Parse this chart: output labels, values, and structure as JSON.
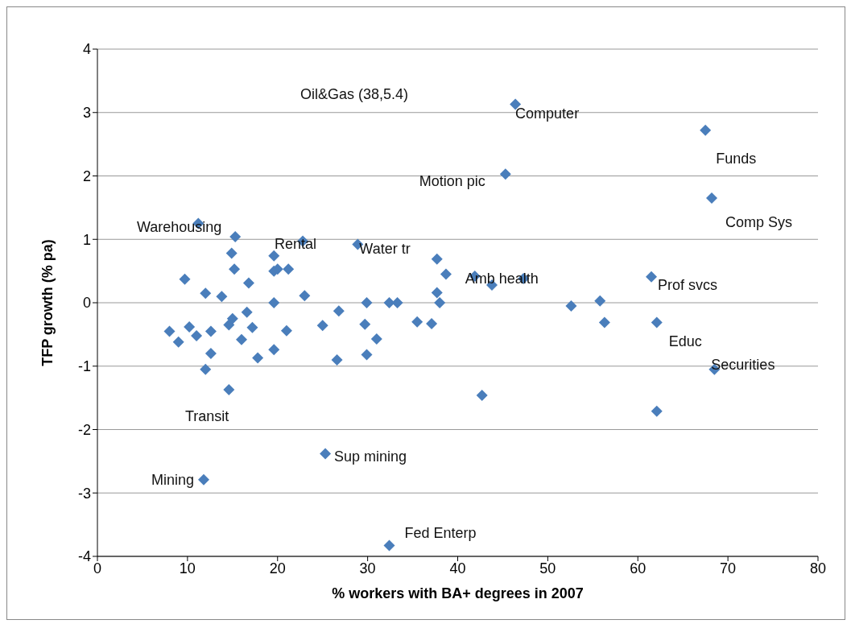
{
  "chart_data": {
    "type": "scatter",
    "xlabel": "% workers with BA+ degrees in 2007",
    "ylabel": "TFP growth (% pa)",
    "x": [
      8,
      9,
      9.7,
      10.2,
      11,
      11.2,
      12,
      12,
      12.6,
      12.6,
      13.8,
      14.6,
      14.6,
      14.9,
      15,
      15.2,
      15.3,
      16,
      16.6,
      16.8,
      17.2,
      17.8,
      19.6,
      19.6,
      19.6,
      19.6,
      20,
      21,
      21.2,
      22.8,
      23,
      25,
      25.3,
      26.6,
      26.8,
      28.9,
      29.7,
      29.9,
      29.9,
      31,
      32.4,
      33.3,
      35.5,
      37.1,
      37.7,
      37.7,
      38,
      38.7,
      41.9,
      42.7,
      43.8,
      45.3,
      46.4,
      47.3,
      52.6,
      55.8,
      56.3,
      61.5,
      62.1,
      62.1,
      67.5,
      68.2,
      68.5,
      11.8,
      32.4
    ],
    "series": [
      {
        "color": "#4a7ebb",
        "values": [
          -0.45,
          -0.62,
          0.37,
          -0.38,
          -0.52,
          1.25,
          0.15,
          -1.05,
          -0.45,
          -0.8,
          0.1,
          -1.37,
          -0.35,
          0.78,
          -0.25,
          0.53,
          1.04,
          -0.58,
          -0.15,
          0.31,
          -0.39,
          -0.87,
          0.74,
          0,
          -0.74,
          0.5,
          0.53,
          -0.44,
          0.53,
          0.97,
          0.11,
          -0.36,
          -2.38,
          -0.9,
          -0.13,
          0.92,
          -0.34,
          0,
          -0.82,
          -0.57,
          0,
          0,
          -0.3,
          -0.33,
          0.69,
          0.16,
          0,
          0.45,
          0.42,
          -1.46,
          0.28,
          2.03,
          3.13,
          0.38,
          -0.05,
          0.03,
          -0.31,
          0.41,
          -0.31,
          -1.71,
          2.72,
          1.65,
          -1.05,
          -2.79,
          -3.83
        ]
      }
    ],
    "xlim": [
      0,
      80
    ],
    "xticks": [
      0,
      10,
      20,
      30,
      40,
      50,
      60,
      70,
      80
    ],
    "ylim": [
      -4,
      4
    ],
    "yticks": [
      -4,
      -3,
      -2,
      -1,
      0,
      1,
      2,
      3,
      4
    ],
    "grid": "y",
    "marker": "diamond",
    "legend": false,
    "annotations": [
      "Oil&Gas (38,5.4)",
      {
        "text": "Computer",
        "x": 46.4,
        "y": 3.13
      },
      {
        "text": "Funds",
        "x": 67.5,
        "y": 2.72
      },
      {
        "text": "Motion pic",
        "x": 45.3,
        "y": 2.03
      },
      {
        "text": "Comp Sys",
        "x": 68.2,
        "y": 1.65
      },
      {
        "text": "Warehousing",
        "x": 11.2,
        "y": 1.25
      },
      {
        "text": "Rental",
        "x": 22.8,
        "y": 0.97
      },
      {
        "text": "Water tr",
        "x": 28.9,
        "y": 0.92
      },
      {
        "text": "Amb health",
        "x": 41.9,
        "y": 0.42
      },
      {
        "text": "Prof svcs",
        "x": 61.5,
        "y": 0.41
      },
      {
        "text": "Educ",
        "x": 62.1,
        "y": -0.31
      },
      {
        "text": "Securities",
        "x": 68.5,
        "y": -1.05
      },
      {
        "text": "Transit",
        "x": 14.6,
        "y": -1.37
      },
      {
        "text": "Sup mining",
        "x": 25.3,
        "y": -2.38
      },
      {
        "text": "Mining",
        "x": 11.8,
        "y": -2.79
      },
      {
        "text": "Fed Enterp",
        "x": 32.4,
        "y": -3.83
      }
    ]
  }
}
